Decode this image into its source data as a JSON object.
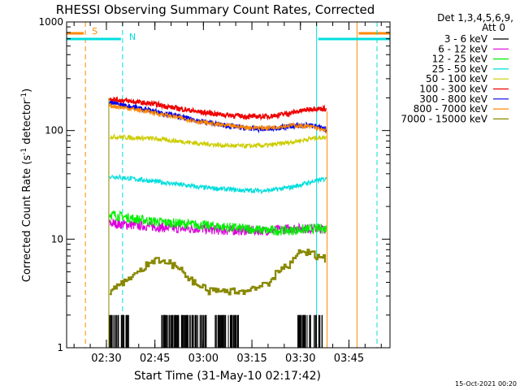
{
  "chart_data": {
    "type": "line",
    "title": "RHESSI Observing Summary Count Rates, Corrected",
    "xlabel": "Start Time (31-May-10 02:17:42)",
    "ylabel_main": "Corrected Count Rate (s",
    "ylabel_sup1": "-1",
    "ylabel_mid": " detector",
    "ylabel_sup2": "-1",
    "ylabel_end": ")",
    "y_scale": "log",
    "ylim": [
      1,
      1000
    ],
    "xlim": [
      "02:17:42",
      "03:57:42"
    ],
    "y_ticks": [
      "1",
      "10",
      "100",
      "1000"
    ],
    "x_ticks": [
      "02:30",
      "02:45",
      "03:00",
      "03:15",
      "03:30",
      "03:45"
    ],
    "legend_header": [
      "Det 1,3,4,5,6,9,",
      "Att 0"
    ],
    "series": [
      {
        "name": "3 - 6 keV",
        "color": "#000000",
        "x": [
          "02:31",
          "02:38",
          "02:45",
          "02:52",
          "02:59",
          "03:06",
          "03:13",
          "03:20",
          "03:27",
          "03:34",
          "03:38"
        ],
        "values": [
          1,
          1,
          1,
          1,
          1,
          1,
          1,
          1,
          1,
          1,
          1
        ]
      },
      {
        "name": "6 - 12 keV",
        "color": "#dd00dd",
        "x": [
          "02:31",
          "02:38",
          "02:45",
          "02:52",
          "02:59",
          "03:06",
          "03:13",
          "03:20",
          "03:27",
          "03:34",
          "03:38"
        ],
        "values": [
          14,
          13.5,
          13,
          12.5,
          12.5,
          12,
          12,
          12,
          12.5,
          12.5,
          12.5
        ]
      },
      {
        "name": "12 - 25 keV",
        "color": "#00ee00",
        "x": [
          "02:31",
          "02:38",
          "02:45",
          "02:52",
          "02:59",
          "03:06",
          "03:13",
          "03:20",
          "03:27",
          "03:34",
          "03:38"
        ],
        "values": [
          17,
          15.5,
          14.5,
          14,
          13.5,
          13,
          12.5,
          12,
          12,
          12.5,
          12.5
        ]
      },
      {
        "name": "25 - 50 keV",
        "color": "#00dddd",
        "x": [
          "02:31",
          "02:38",
          "02:45",
          "02:52",
          "02:59",
          "03:06",
          "03:13",
          "03:20",
          "03:27",
          "03:34",
          "03:38"
        ],
        "values": [
          38,
          36,
          34,
          32,
          30,
          29,
          28,
          28,
          30,
          34,
          36
        ]
      },
      {
        "name": "50 - 100 keV",
        "color": "#cccc00",
        "x": [
          "02:31",
          "02:38",
          "02:45",
          "02:52",
          "02:59",
          "03:06",
          "03:13",
          "03:20",
          "03:27",
          "03:34",
          "03:38"
        ],
        "values": [
          88,
          86,
          84,
          80,
          76,
          73,
          72,
          73,
          78,
          85,
          87
        ]
      },
      {
        "name": "100 - 300 keV",
        "color": "#ee0000",
        "x": [
          "02:31",
          "02:38",
          "02:45",
          "02:52",
          "02:59",
          "03:06",
          "03:13",
          "03:20",
          "03:27",
          "03:34",
          "03:38"
        ],
        "values": [
          195,
          185,
          175,
          160,
          148,
          140,
          135,
          135,
          145,
          160,
          158
        ]
      },
      {
        "name": "300 - 800 keV",
        "color": "#0000ee",
        "x": [
          "02:31",
          "02:38",
          "02:45",
          "02:52",
          "02:59",
          "03:06",
          "03:13",
          "03:20",
          "03:27",
          "03:34",
          "03:38"
        ],
        "values": [
          180,
          165,
          150,
          135,
          122,
          112,
          105,
          103,
          110,
          112,
          100
        ]
      },
      {
        "name": "800 - 7000 keV",
        "color": "#ff8800",
        "x": [
          "02:31",
          "02:38",
          "02:45",
          "02:52",
          "02:59",
          "03:06",
          "03:13",
          "03:20",
          "03:27",
          "03:34",
          "03:38"
        ],
        "values": [
          170,
          158,
          145,
          132,
          120,
          112,
          107,
          106,
          112,
          108,
          98
        ]
      },
      {
        "name": "7000 - 15000 keV",
        "color": "#888800",
        "x": [
          "02:31",
          "02:35",
          "02:40",
          "02:45",
          "02:50",
          "02:55",
          "03:00",
          "03:05",
          "03:10",
          "03:15",
          "03:20",
          "03:25",
          "03:30",
          "03:35",
          "03:38"
        ],
        "values": [
          3.3,
          4,
          5,
          6.5,
          6,
          4.5,
          3.5,
          3.2,
          3.2,
          3.5,
          4,
          5.5,
          7.5,
          7.2,
          6.5
        ]
      }
    ],
    "annotations": [
      {
        "label": "S",
        "color": "#ff8800",
        "x_start": "02:17:42",
        "x_end": "02:23:30",
        "x_close": "03:47:30",
        "x_close_end": "03:57:42"
      },
      {
        "label": "N",
        "color": "#00dddd",
        "x_start": "02:17:42",
        "x_end": "02:35:00",
        "x_close": "03:35:00",
        "x_close_end": "03:57:42"
      }
    ]
  },
  "footer_date": "15-Oct-2021 00:20"
}
